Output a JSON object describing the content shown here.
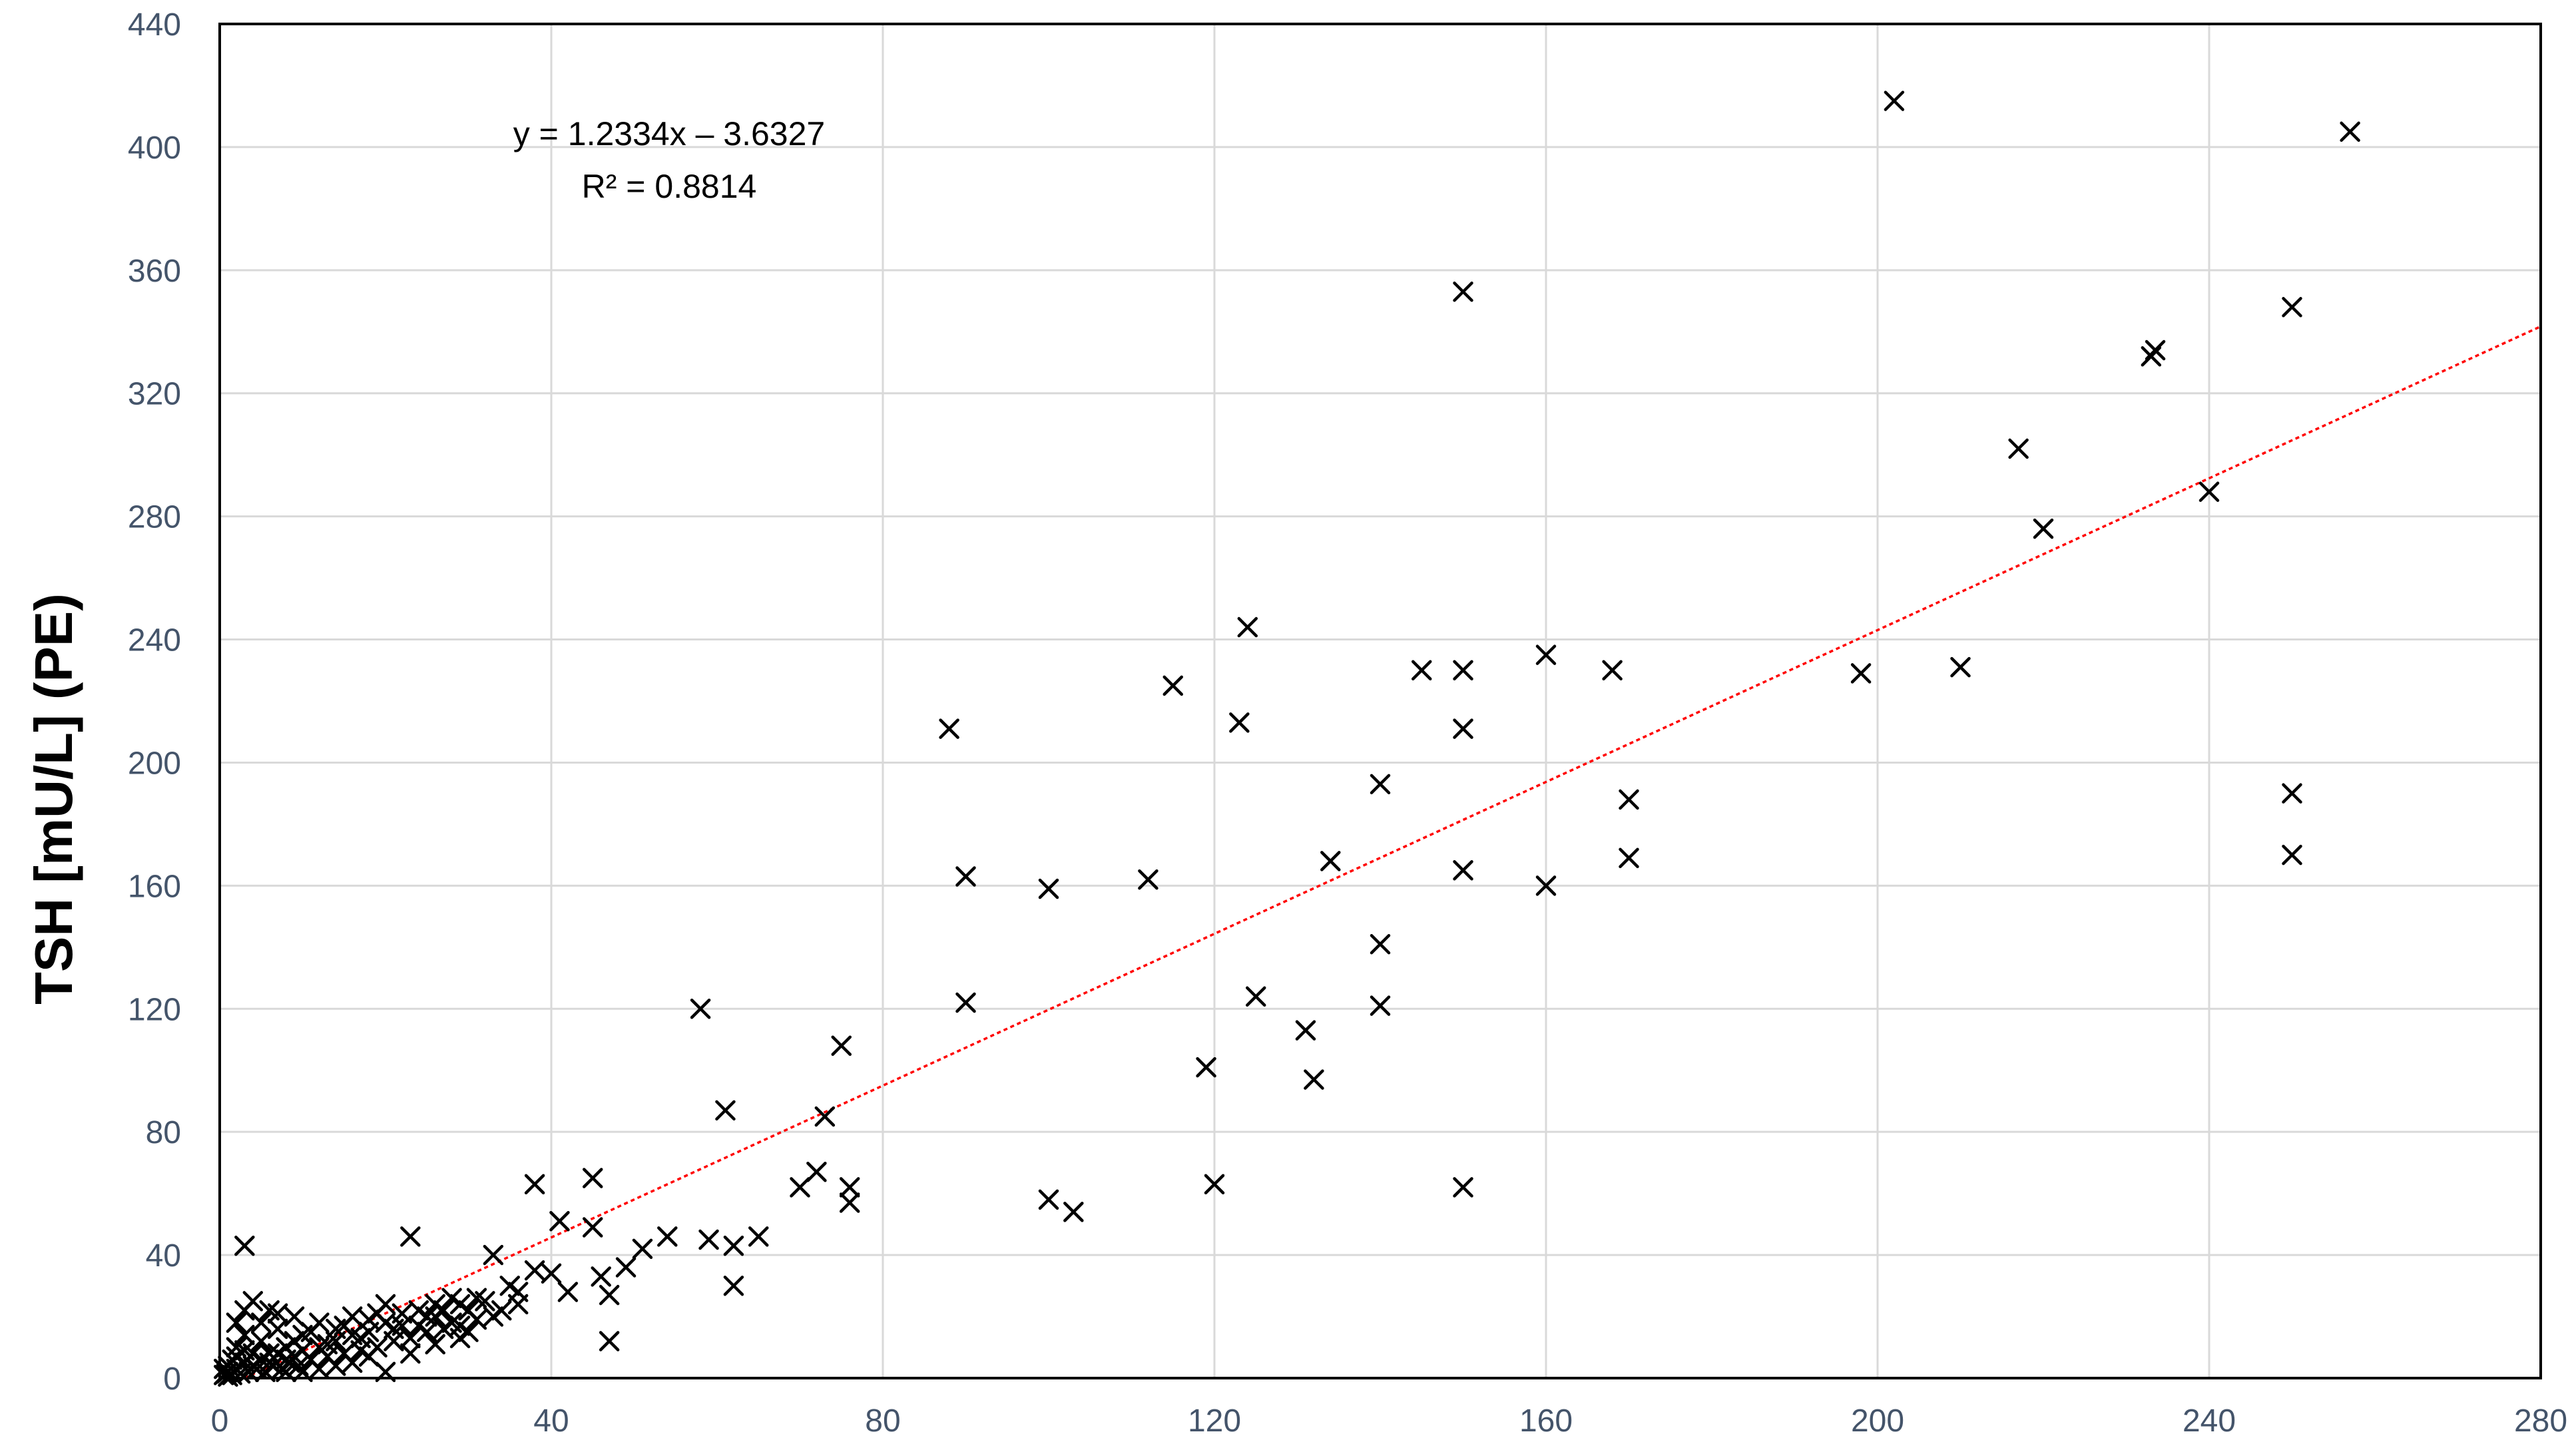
{
  "chart_data": {
    "type": "scatter",
    "title": "",
    "xlabel": "",
    "ylabel": "TSH [mU/L] (PE)",
    "xlim": [
      0,
      280
    ],
    "ylim": [
      0,
      440
    ],
    "xticks": [
      0,
      40,
      80,
      120,
      160,
      200,
      240,
      280
    ],
    "yticks": [
      0,
      40,
      80,
      120,
      160,
      200,
      240,
      280,
      320,
      360,
      400,
      440
    ],
    "grid": true,
    "legend": "none",
    "marker": "x",
    "trendline": {
      "type": "linear",
      "slope": 1.2334,
      "intercept": -3.6327,
      "equation_label": "y = 1.2334x – 3.6327",
      "r2_label": "R² = 0.8814",
      "color": "#ff0000"
    },
    "series": [
      {
        "points": [
          [
            202,
            415
          ],
          [
            257,
            405
          ],
          [
            150,
            353
          ],
          [
            250,
            348
          ],
          [
            233.5,
            334
          ],
          [
            233,
            332
          ],
          [
            217,
            302
          ],
          [
            240,
            288
          ],
          [
            220,
            276
          ],
          [
            124,
            244
          ],
          [
            160,
            235
          ],
          [
            145,
            230
          ],
          [
            150,
            230
          ],
          [
            168,
            230
          ],
          [
            198,
            229
          ],
          [
            210,
            231
          ],
          [
            115,
            225
          ],
          [
            123,
            213
          ],
          [
            150,
            211
          ],
          [
            88,
            211
          ],
          [
            140,
            193
          ],
          [
            170,
            188
          ],
          [
            250,
            190
          ],
          [
            134,
            168
          ],
          [
            150,
            165
          ],
          [
            90,
            163
          ],
          [
            112,
            162
          ],
          [
            100,
            159
          ],
          [
            160,
            160
          ],
          [
            170,
            169
          ],
          [
            250,
            170
          ],
          [
            140,
            141
          ],
          [
            58,
            120
          ],
          [
            90,
            122
          ],
          [
            125,
            124
          ],
          [
            140,
            121
          ],
          [
            131,
            113
          ],
          [
            75,
            108
          ],
          [
            119,
            101
          ],
          [
            132,
            97
          ],
          [
            61,
            87
          ],
          [
            73,
            85
          ],
          [
            72,
            67
          ],
          [
            70,
            62
          ],
          [
            76,
            62
          ],
          [
            120,
            63
          ],
          [
            150,
            62
          ],
          [
            76,
            57
          ],
          [
            100,
            58
          ],
          [
            103,
            54
          ],
          [
            45,
            65
          ],
          [
            38,
            63
          ],
          [
            41,
            51
          ],
          [
            45,
            49
          ],
          [
            54,
            46
          ],
          [
            59,
            45
          ],
          [
            62,
            43
          ],
          [
            65,
            46
          ],
          [
            51,
            42
          ],
          [
            49,
            36
          ],
          [
            23,
            46
          ],
          [
            3,
            43
          ],
          [
            33,
            40
          ],
          [
            46,
            33
          ],
          [
            47,
            27
          ],
          [
            62,
            30
          ],
          [
            47,
            12
          ],
          [
            38,
            35
          ],
          [
            42,
            28
          ],
          [
            36,
            28
          ],
          [
            40,
            34
          ],
          [
            35,
            30
          ],
          [
            32,
            25
          ],
          [
            30,
            22
          ],
          [
            28,
            18
          ],
          [
            26,
            20
          ],
          [
            24,
            22
          ],
          [
            22,
            17
          ],
          [
            20,
            24
          ],
          [
            18,
            15
          ],
          [
            16,
            20
          ],
          [
            14,
            12
          ],
          [
            12,
            18
          ],
          [
            10,
            14
          ],
          [
            9,
            20
          ],
          [
            8,
            10
          ],
          [
            7,
            16
          ],
          [
            6,
            22
          ],
          [
            5,
            12
          ],
          [
            4,
            25
          ],
          [
            4,
            8
          ],
          [
            3,
            14
          ],
          [
            3,
            5
          ],
          [
            2,
            10
          ],
          [
            2,
            3
          ],
          [
            1.5,
            6
          ],
          [
            1,
            2
          ],
          [
            1,
            0.5
          ],
          [
            0.5,
            1
          ],
          [
            0.5,
            3
          ],
          [
            1.5,
            1
          ],
          [
            2.5,
            1.5
          ],
          [
            3.5,
            2
          ],
          [
            4.5,
            3
          ],
          [
            5.5,
            2
          ],
          [
            6.5,
            4
          ],
          [
            7.5,
            3
          ],
          [
            8.5,
            5
          ],
          [
            9.5,
            4
          ],
          [
            11,
            6
          ],
          [
            13,
            7
          ],
          [
            15,
            8
          ],
          [
            17,
            9
          ],
          [
            19,
            10
          ],
          [
            21,
            12
          ],
          [
            23,
            13
          ],
          [
            25,
            15
          ],
          [
            27,
            16
          ],
          [
            29,
            17
          ],
          [
            31,
            19
          ],
          [
            6,
            8
          ],
          [
            8,
            6
          ],
          [
            10,
            9
          ],
          [
            12,
            10
          ],
          [
            14,
            16
          ],
          [
            16,
            14
          ],
          [
            18,
            19
          ],
          [
            20,
            18
          ],
          [
            22,
            21
          ],
          [
            24,
            17
          ],
          [
            26,
            24
          ],
          [
            11,
            15
          ],
          [
            13,
            11
          ],
          [
            15,
            17
          ],
          [
            17,
            13
          ],
          [
            19,
            21
          ],
          [
            21,
            16
          ],
          [
            25,
            20
          ],
          [
            27,
            22
          ],
          [
            29,
            24
          ],
          [
            2,
            18
          ],
          [
            3,
            22
          ],
          [
            5,
            18
          ],
          [
            7,
            21
          ],
          [
            9,
            12
          ],
          [
            5,
            6
          ],
          [
            7,
            8
          ],
          [
            9,
            7
          ],
          [
            10,
            2
          ],
          [
            20,
            2
          ],
          [
            1,
            4
          ],
          [
            2,
            7
          ],
          [
            3,
            9
          ],
          [
            4,
            4
          ],
          [
            6,
            5
          ],
          [
            8,
            2
          ],
          [
            12,
            3
          ],
          [
            14,
            4
          ],
          [
            16,
            5
          ],
          [
            18,
            7
          ],
          [
            34,
            22
          ],
          [
            36,
            24
          ],
          [
            31,
            26
          ],
          [
            28,
            26
          ],
          [
            33,
            20
          ],
          [
            23,
            8
          ],
          [
            26,
            11
          ],
          [
            29,
            13
          ],
          [
            30,
            15
          ],
          [
            0.8,
            1.5
          ]
        ]
      }
    ]
  }
}
